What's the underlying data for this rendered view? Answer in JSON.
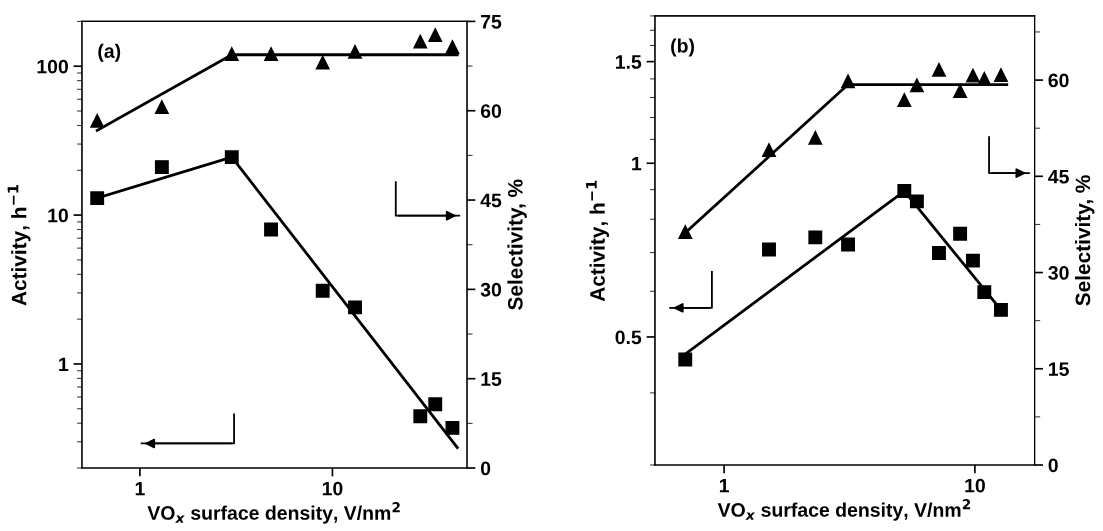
{
  "chart_data": [
    {
      "type": "scatter",
      "title": "(a)",
      "xlabel": "VO$_{x}$ surface density, V/nm$^{2}$",
      "ylabel": "Activity, h$^{−1}$",
      "y2label": "Selectivity, %",
      "log": "xy",
      "xlim": [
        0.5,
        50
      ],
      "xticks": [
        1,
        10
      ],
      "ylim": [
        0.2,
        200
      ],
      "yticks": [
        1,
        10,
        100
      ],
      "y2lim": [
        0,
        75
      ],
      "y2ticks": [
        0,
        {
          "value": 7.5,
          "label": null
        },
        15,
        {
          "value": 22.5,
          "label": null
        },
        30,
        {
          "value": 37.5,
          "label": null
        },
        45,
        {
          "value": 52.5,
          "label": null
        },
        60,
        {
          "value": 67.5,
          "label": null
        },
        75
      ],
      "grid": false,
      "legend": false,
      "series": [
        {
          "marker": "square",
          "color": "#000000",
          "x": [
            0.6,
            1.3,
            3.0,
            4.8,
            8.9,
            13.1,
            28.6,
            34.2,
            42
          ],
          "values": [
            13,
            21,
            24.5,
            8.0,
            3.1,
            2.4,
            0.445,
            0.536,
            0.372
          ]
        },
        {
          "type": "line",
          "line_style": "solid",
          "color": "#000000",
          "x": [
            0.6,
            3.0,
            44.5
          ],
          "values": [
            13,
            24.5,
            0.275
          ]
        },
        {
          "axis": "y2",
          "marker": "triangle",
          "color": "#000000",
          "x": [
            0.6,
            1.3,
            3.0,
            4.8,
            8.9,
            13.1,
            28.6,
            34.2,
            42
          ],
          "values": [
            58.3,
            60.6,
            69.5,
            69.5,
            68.1,
            69.9,
            71.6,
            72.7,
            70.7
          ]
        },
        {
          "type": "line",
          "axis": "y2",
          "line_style": "solid",
          "color": "#000000",
          "x": [
            0.6,
            3.0,
            44.5
          ],
          "values": [
            56.7,
            69.4,
            69.4
          ]
        }
      ]
    },
    {
      "type": "scatter",
      "title": "(b)",
      "xlabel": "VO$_{x}$ surface density, V/nm$^{2}$",
      "ylabel": "Activity, h$^{−1}$",
      "y2label": "Selectivity, %",
      "log": "xy",
      "xlim": [
        0.53,
        17.3
      ],
      "xticks": [
        1,
        10
      ],
      "ylim": [
        0.3,
        1.8
      ],
      "yticks": [
        {
          "value": 0.3,
          "label": null
        },
        {
          "value": 0.4,
          "label": null
        },
        0.5,
        {
          "value": 0.6,
          "label": null
        },
        {
          "value": 0.7,
          "label": null
        },
        {
          "value": 0.8,
          "label": null
        },
        {
          "value": 0.9,
          "label": null
        },
        1,
        {
          "value": 1.1,
          "label": null
        },
        {
          "value": 1.2,
          "label": null
        },
        {
          "value": 1.3,
          "label": null
        },
        {
          "value": 1.4,
          "label": null
        },
        1.5,
        {
          "value": 1.6,
          "label": null
        },
        {
          "value": 1.7,
          "label": null
        },
        {
          "value": 1.8,
          "label": null
        }
      ],
      "y2lim": [
        0,
        70
      ],
      "y2ticks": [
        0,
        {
          "value": 7.5,
          "label": null
        },
        15,
        {
          "value": 22.5,
          "label": null
        },
        30,
        {
          "value": 37.5,
          "label": null
        },
        45,
        {
          "value": 52.5,
          "label": null
        },
        60,
        {
          "value": 67.5,
          "label": null
        }
      ],
      "grid": false,
      "legend": false,
      "series": [
        {
          "marker": "square",
          "color": "#000000",
          "x": [
            0.7,
            1.51,
            2.31,
            3.12,
            5.23,
            5.87,
            7.19,
            8.73,
            9.82,
            10.9,
            12.7
          ],
          "values": [
            0.457,
            0.709,
            0.744,
            0.723,
            0.895,
            0.859,
            0.699,
            0.755,
            0.678,
            0.598,
            0.557
          ]
        },
        {
          "type": "line",
          "line_style": "solid",
          "color": "#000000",
          "x": [
            0.7,
            5.23,
            12.7
          ],
          "values": [
            0.467,
            0.895,
            0.557
          ]
        },
        {
          "axis": "y2",
          "marker": "triangle",
          "color": "#000000",
          "x": [
            0.7,
            1.51,
            2.31,
            3.12,
            5.23,
            5.87,
            7.19,
            8.73,
            9.82,
            10.9,
            12.7
          ],
          "values": [
            36.3,
            49.1,
            51.0,
            59.8,
            56.9,
            59.2,
            61.6,
            58.3,
            60.7,
            60.2,
            60.8
          ]
        },
        {
          "type": "line",
          "axis": "y2",
          "line_style": "solid",
          "color": "#000000",
          "x": [
            0.7,
            3.12,
            13.4
          ],
          "values": [
            36.2,
            59.3,
            59.3
          ]
        }
      ]
    }
  ]
}
